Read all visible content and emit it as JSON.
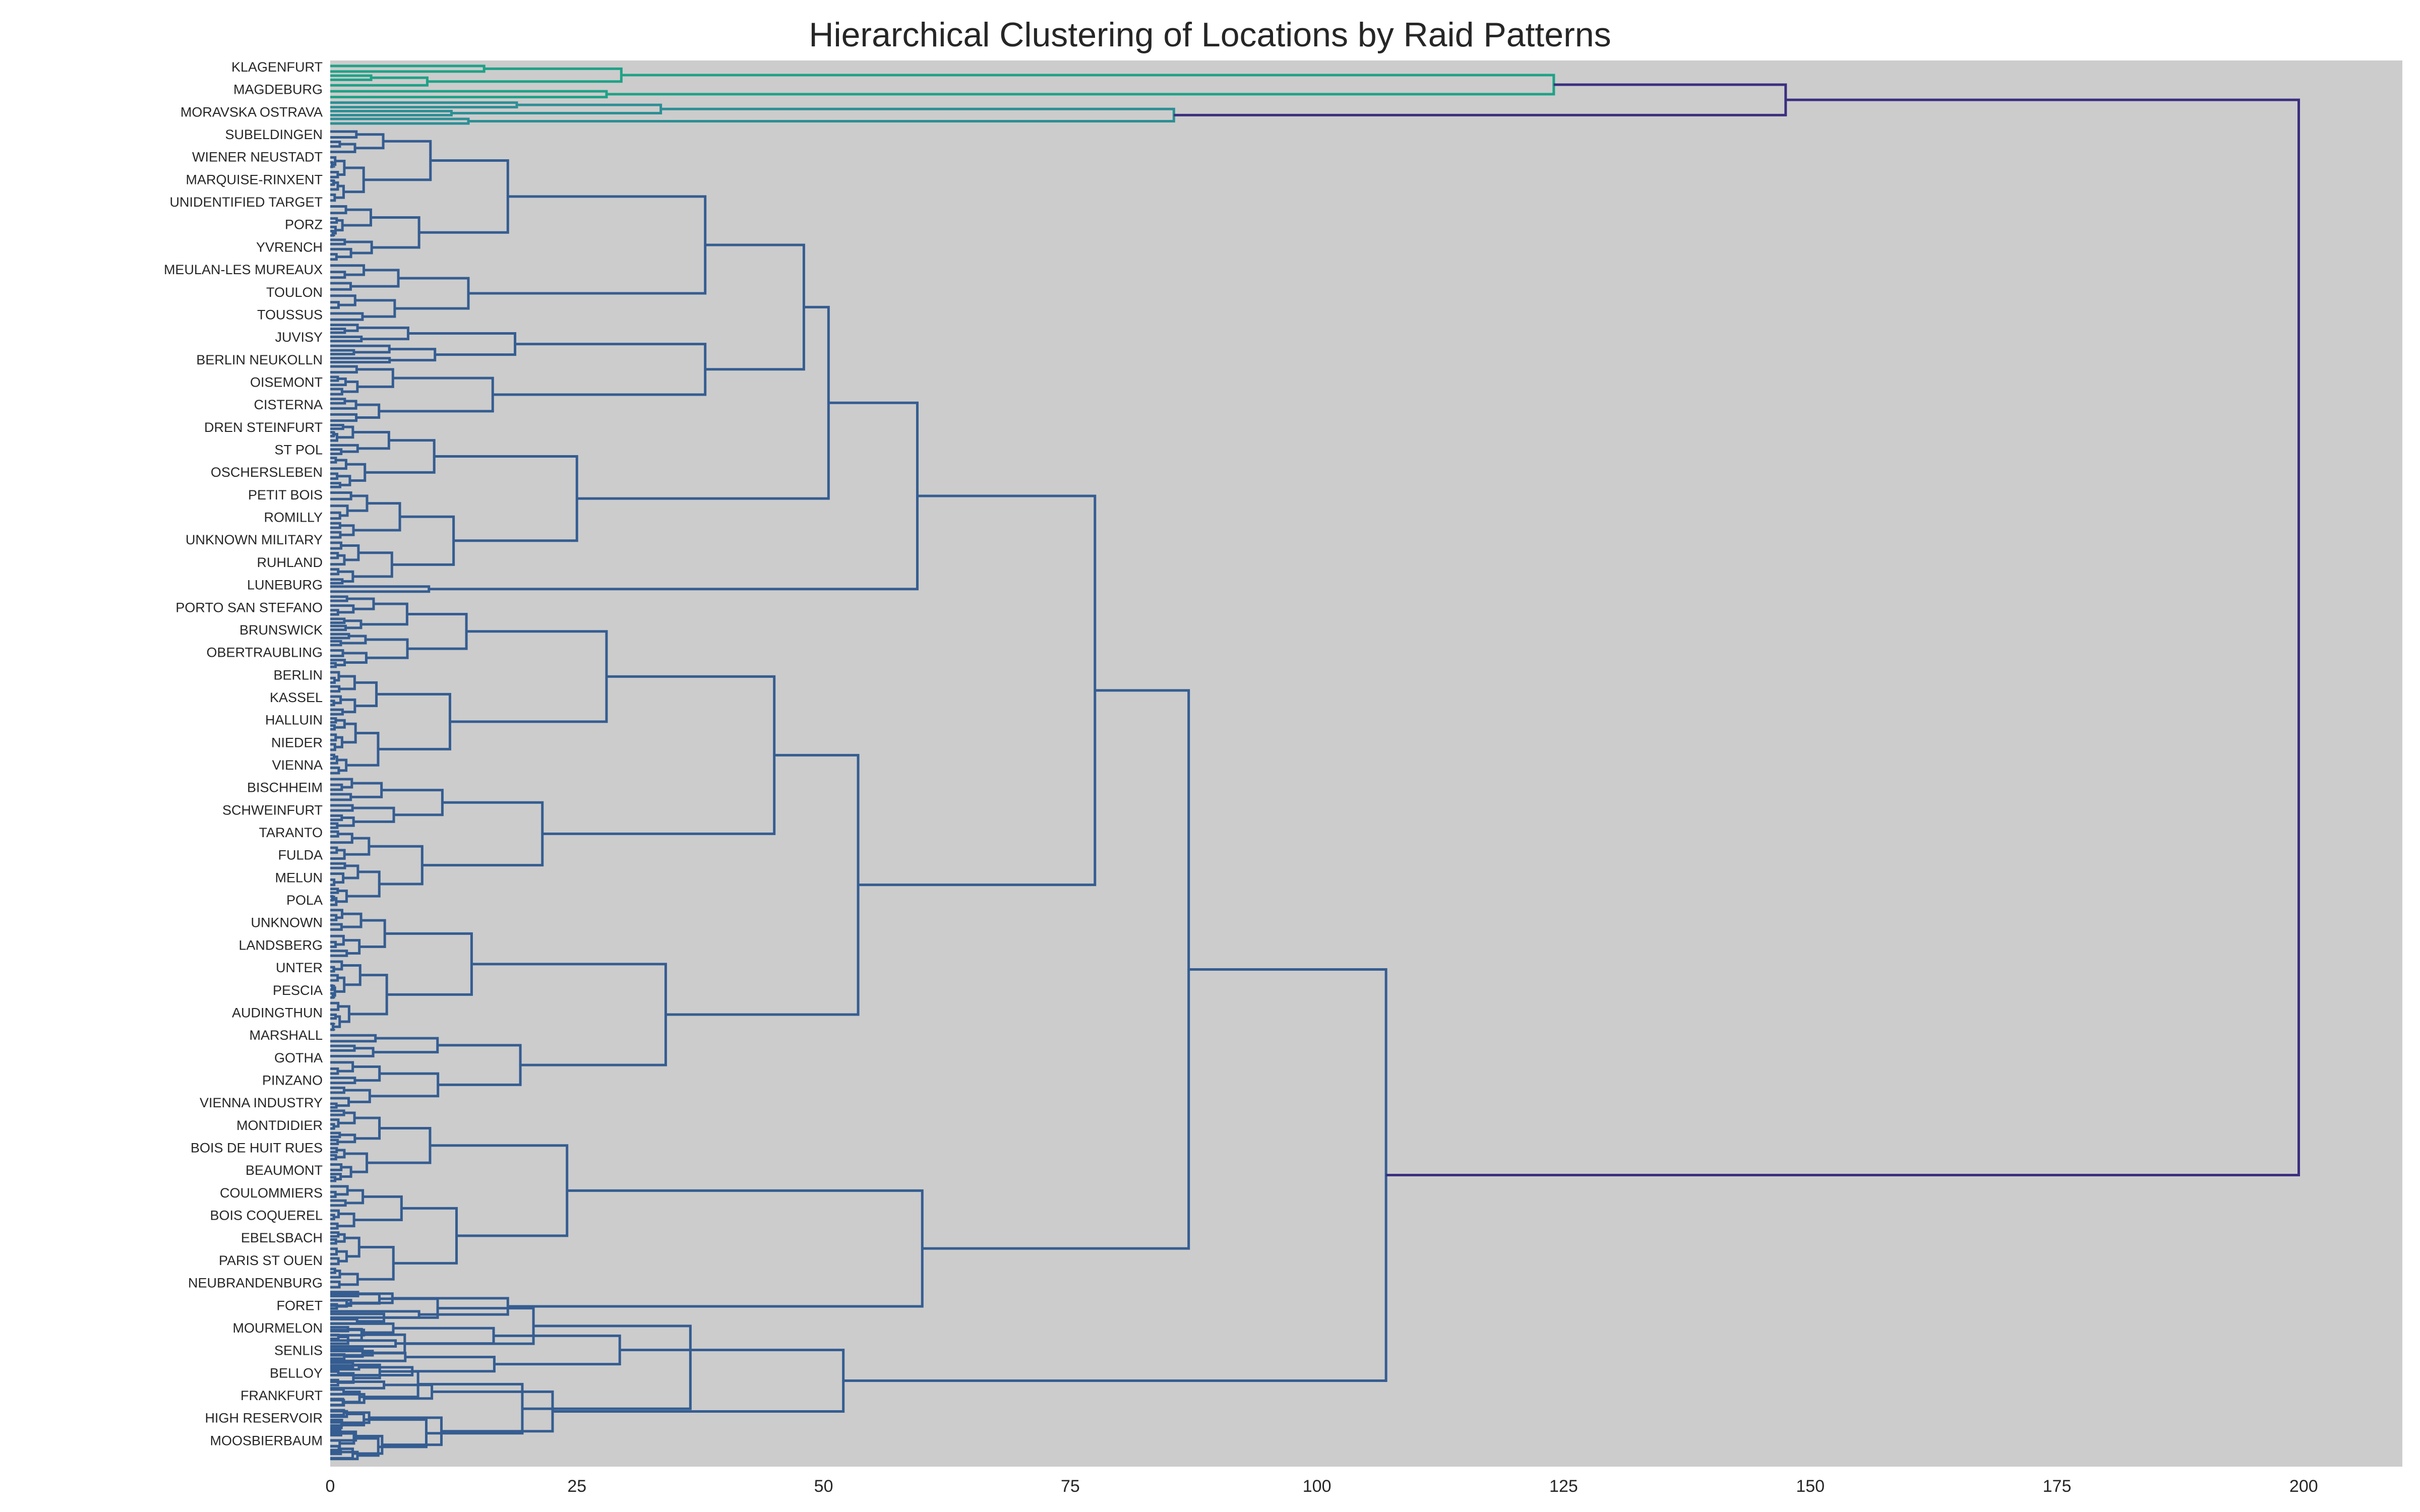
{
  "chart_data": {
    "type": "dendrogram",
    "title": "Hierarchical Clustering of Locations by Raid Patterns",
    "xlabel": "",
    "ylabel": "",
    "orientation": "horizontal (root on right)",
    "xlim": [
      0,
      210
    ],
    "x_ticks": [
      0,
      25,
      50,
      75,
      100,
      125,
      150,
      175,
      200
    ],
    "grid": false,
    "legend": "none",
    "colors": {
      "plot_background": "#cccccc",
      "green_cluster": "#1fa287",
      "teal_cluster": "#2d8f95",
      "blue_cluster": "#355d91",
      "root_link": "#3a2f80"
    },
    "merge_heights": [
      199.5,
      147.5,
      124,
      85.5,
      107,
      87,
      77.5,
      59.5,
      60,
      53.5,
      52,
      50.5,
      48,
      45,
      38,
      33.5,
      29.5,
      28,
      26,
      25,
      24,
      21.5,
      18,
      14,
      10,
      5,
      2
    ],
    "leaf_labels_visible": [
      "KLAGENFURT",
      "MAGDEBURG",
      "MORAVSKA OSTRAVA",
      "SUBELDINGEN",
      "WIENER NEUSTADT",
      "MARQUISE-RINXENT",
      "UNIDENTIFIED TARGET",
      "PORZ",
      "YVRENCH",
      "MEULAN-LES MUREAUX",
      "TOULON",
      "TOUSSUS",
      "JUVISY",
      "BERLIN NEUKOLLN",
      "OISEMONT",
      "CISTERNA",
      "DREN STEINFURT",
      "ST POL",
      "OSCHERSLEBEN",
      "PETIT BOIS",
      "ROMILLY",
      "UNKNOWN MILITARY",
      "RUHLAND",
      "LUNEBURG",
      "PORTO SAN STEFANO",
      "BRUNSWICK",
      "OBERTRAUBLING",
      "BERLIN",
      "KASSEL",
      "HALLUIN",
      "NIEDER",
      "VIENNA",
      "BISCHHEIM",
      "SCHWEINFURT",
      "TARANTO",
      "FULDA",
      "MELUN",
      "POLA",
      "UNKNOWN",
      "LANDSBERG",
      "UNTER",
      "PESCIA",
      "AUDINGTHUN",
      "MARSHALL",
      "GOTHA",
      "PINZANO",
      "VIENNA INDUSTRY",
      "MONTDIDIER",
      "BOIS DE HUIT RUES",
      "BEAUMONT",
      "COULOMMIERS",
      "BOIS COQUEREL",
      "EBELSBACH",
      "PARIS ST OUEN",
      "NEUBRANDENBURG",
      "FORET",
      "MOURMELON",
      "SENLIS",
      "BELLOY",
      "FRANKFURT",
      "HIGH RESERVOIR",
      "MOOSBIERBAUM"
    ]
  }
}
